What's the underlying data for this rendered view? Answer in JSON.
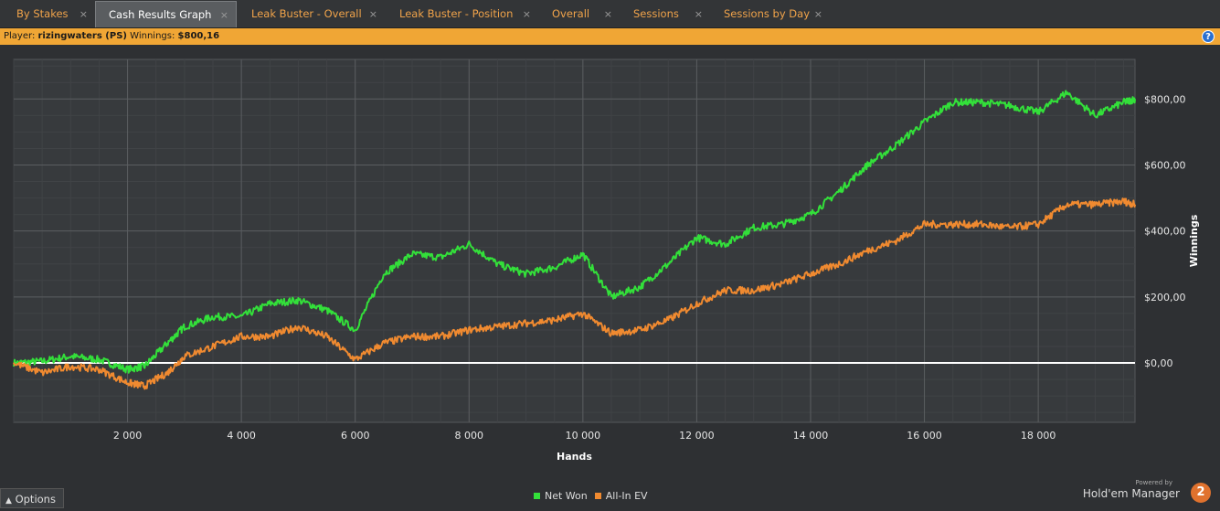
{
  "tabs": [
    {
      "label": "By Stakes",
      "active": false
    },
    {
      "label": "Cash Results Graph",
      "active": true
    },
    {
      "label": "Leak Buster - Overall",
      "active": false
    },
    {
      "label": "Leak Buster - Position",
      "active": false
    },
    {
      "label": "Overall",
      "active": false
    },
    {
      "label": "Sessions",
      "active": false
    },
    {
      "label": "Sessions by Day",
      "active": false
    }
  ],
  "close_glyph": "×",
  "infobar": {
    "player_label": "Player:",
    "player_value": "rizingwaters (PS)",
    "winnings_label": "Winnings:",
    "winnings_value": "$800,16",
    "help_icon": "?"
  },
  "chart_data": {
    "type": "line",
    "xlabel": "Hands",
    "ylabel": "Winnings",
    "xlim": [
      0,
      19700
    ],
    "ylim": [
      -180,
      920
    ],
    "x_ticks": [
      2000,
      4000,
      6000,
      8000,
      10000,
      12000,
      14000,
      16000,
      18000
    ],
    "x_tick_labels": [
      "2 000",
      "4 000",
      "6 000",
      "8 000",
      "10 000",
      "12 000",
      "14 000",
      "16 000",
      "18 000"
    ],
    "y_ticks": [
      0,
      200,
      400,
      600,
      800
    ],
    "y_tick_labels": [
      "$0,00",
      "$200,00",
      "$400,00",
      "$600,00",
      "$800,00"
    ],
    "grid": true,
    "legend_position": "bottom-center",
    "series": [
      {
        "name": "Net Won",
        "color": "#33e03a",
        "x": [
          0,
          500,
          1000,
          1500,
          2000,
          2300,
          2700,
          3000,
          3500,
          4000,
          4500,
          5000,
          5500,
          6000,
          6500,
          7000,
          7500,
          8000,
          8500,
          9000,
          9500,
          10000,
          10500,
          11000,
          11500,
          12000,
          12500,
          13000,
          13500,
          14000,
          14500,
          15000,
          15500,
          16000,
          16500,
          17000,
          17500,
          18000,
          18500,
          19000,
          19500,
          19700
        ],
        "y": [
          0,
          5,
          20,
          10,
          -20,
          -10,
          60,
          110,
          140,
          140,
          180,
          190,
          160,
          100,
          270,
          330,
          320,
          360,
          300,
          270,
          290,
          330,
          200,
          230,
          300,
          380,
          360,
          410,
          420,
          450,
          520,
          600,
          660,
          730,
          790,
          790,
          780,
          760,
          820,
          750,
          790,
          800
        ]
      },
      {
        "name": "All-In EV",
        "color": "#f08a30",
        "x": [
          0,
          500,
          1000,
          1500,
          2000,
          2300,
          2700,
          3000,
          3500,
          4000,
          4500,
          5000,
          5500,
          6000,
          6500,
          7000,
          7500,
          8000,
          8500,
          9000,
          9500,
          10000,
          10500,
          11000,
          11500,
          12000,
          12500,
          13000,
          13500,
          14000,
          14500,
          15000,
          15500,
          16000,
          16500,
          17000,
          17500,
          18000,
          18500,
          19000,
          19500,
          19700
        ],
        "y": [
          0,
          -30,
          -10,
          -20,
          -60,
          -70,
          -30,
          20,
          50,
          80,
          80,
          110,
          80,
          10,
          60,
          80,
          80,
          100,
          110,
          120,
          130,
          150,
          90,
          100,
          130,
          180,
          220,
          220,
          240,
          270,
          300,
          340,
          370,
          420,
          420,
          420,
          410,
          420,
          480,
          480,
          490,
          480
        ]
      }
    ],
    "zero_line": true
  },
  "footer": {
    "options_label": "Options",
    "options_icon": "chevron-up-icon",
    "powered_by": "Powered by",
    "brand": "Hold'em Manager",
    "brand_mark": "2"
  }
}
